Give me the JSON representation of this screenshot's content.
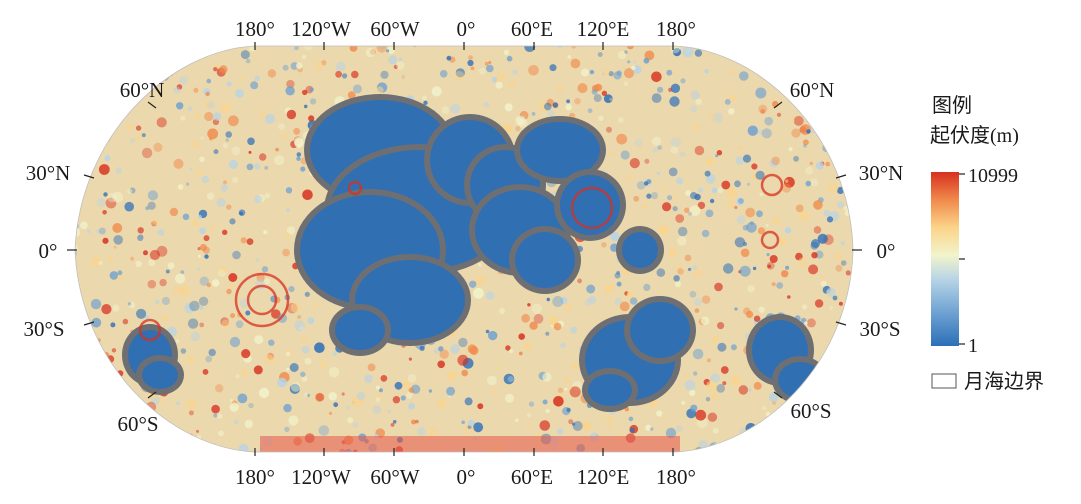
{
  "map": {
    "projection": "Robinson-like pseudocylindrical",
    "top_longitude_labels": [
      "180°",
      "120°W",
      "60°W",
      "0°",
      "60°E",
      "120°E",
      "180°"
    ],
    "bottom_longitude_labels": [
      "180°",
      "120°W",
      "60°W",
      "0°",
      "60°E",
      "120°E",
      "180°"
    ],
    "left_latitude_labels": [
      "60°N",
      "30°N",
      "0°",
      "30°S",
      "60°S"
    ],
    "right_latitude_labels": [
      "60°N",
      "30°N",
      "0°",
      "30°S",
      "60°S"
    ]
  },
  "legend": {
    "title_line1": "图例",
    "title_line2": "起伏度(m)",
    "max_label": "10999",
    "min_label": "1",
    "mare_label": "月海边界",
    "colormap": [
      "#2c6fb8",
      "#6a9fd0",
      "#b6d3e6",
      "#f1f4cc",
      "#fbd48a",
      "#f08a4b",
      "#d7301f"
    ],
    "mare_fill_color": "#6d6f72"
  }
}
